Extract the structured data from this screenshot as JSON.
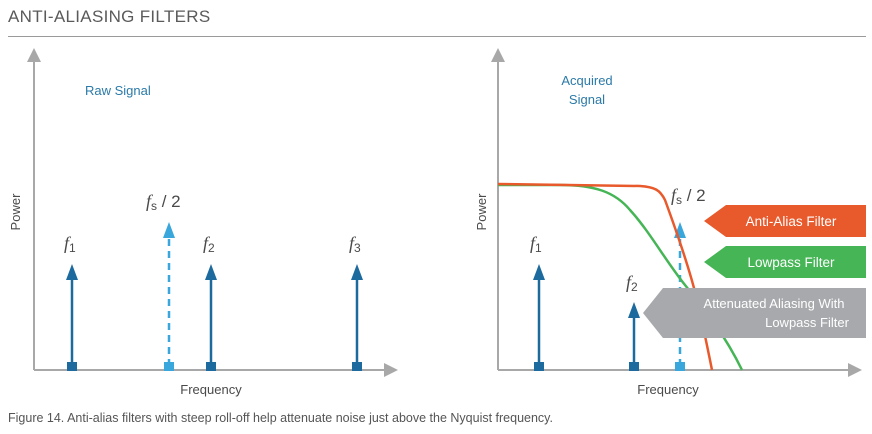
{
  "header": {
    "title": "ANTI-ALIASING FILTERS"
  },
  "left_panel": {
    "label": "Raw Signal",
    "y_axis_label": "Power",
    "x_axis_label": "Frequency",
    "f1": "f",
    "f1_sub": "1",
    "f2": "f",
    "f2_sub": "2",
    "f3": "f",
    "f3_sub": "3",
    "nyquist": "f",
    "nyquist_sub": "s",
    "nyquist_suffix": " / 2"
  },
  "right_panel": {
    "label_line1": "Acquired",
    "label_line2": "Signal",
    "y_axis_label": "Power",
    "x_axis_label": "Frequency",
    "f1": "f",
    "f1_sub": "1",
    "f2": "f",
    "f2_sub": "2",
    "nyquist": "f",
    "nyquist_sub": "s",
    "nyquist_suffix": " / 2",
    "legend_anti_alias": "Anti-Alias Filter",
    "legend_lowpass": "Lowpass Filter",
    "legend_attenuated_line1": "Attenuated Aliasing With",
    "legend_attenuated_line2": "Lowpass Filter"
  },
  "caption": "Figure 14. Anti-alias filters with steep roll-off help attenuate noise just above the Nyquist frequency.",
  "colors": {
    "axis": "#a8a8a8",
    "signal": "#1d6a9e",
    "nyquist": "#3aa7dc",
    "panel_label": "#2b7aa8",
    "anti_alias": "#e8592b",
    "lowpass": "#45b556",
    "attenuated": "#a7a9ac",
    "text": "#4a4a4a"
  }
}
